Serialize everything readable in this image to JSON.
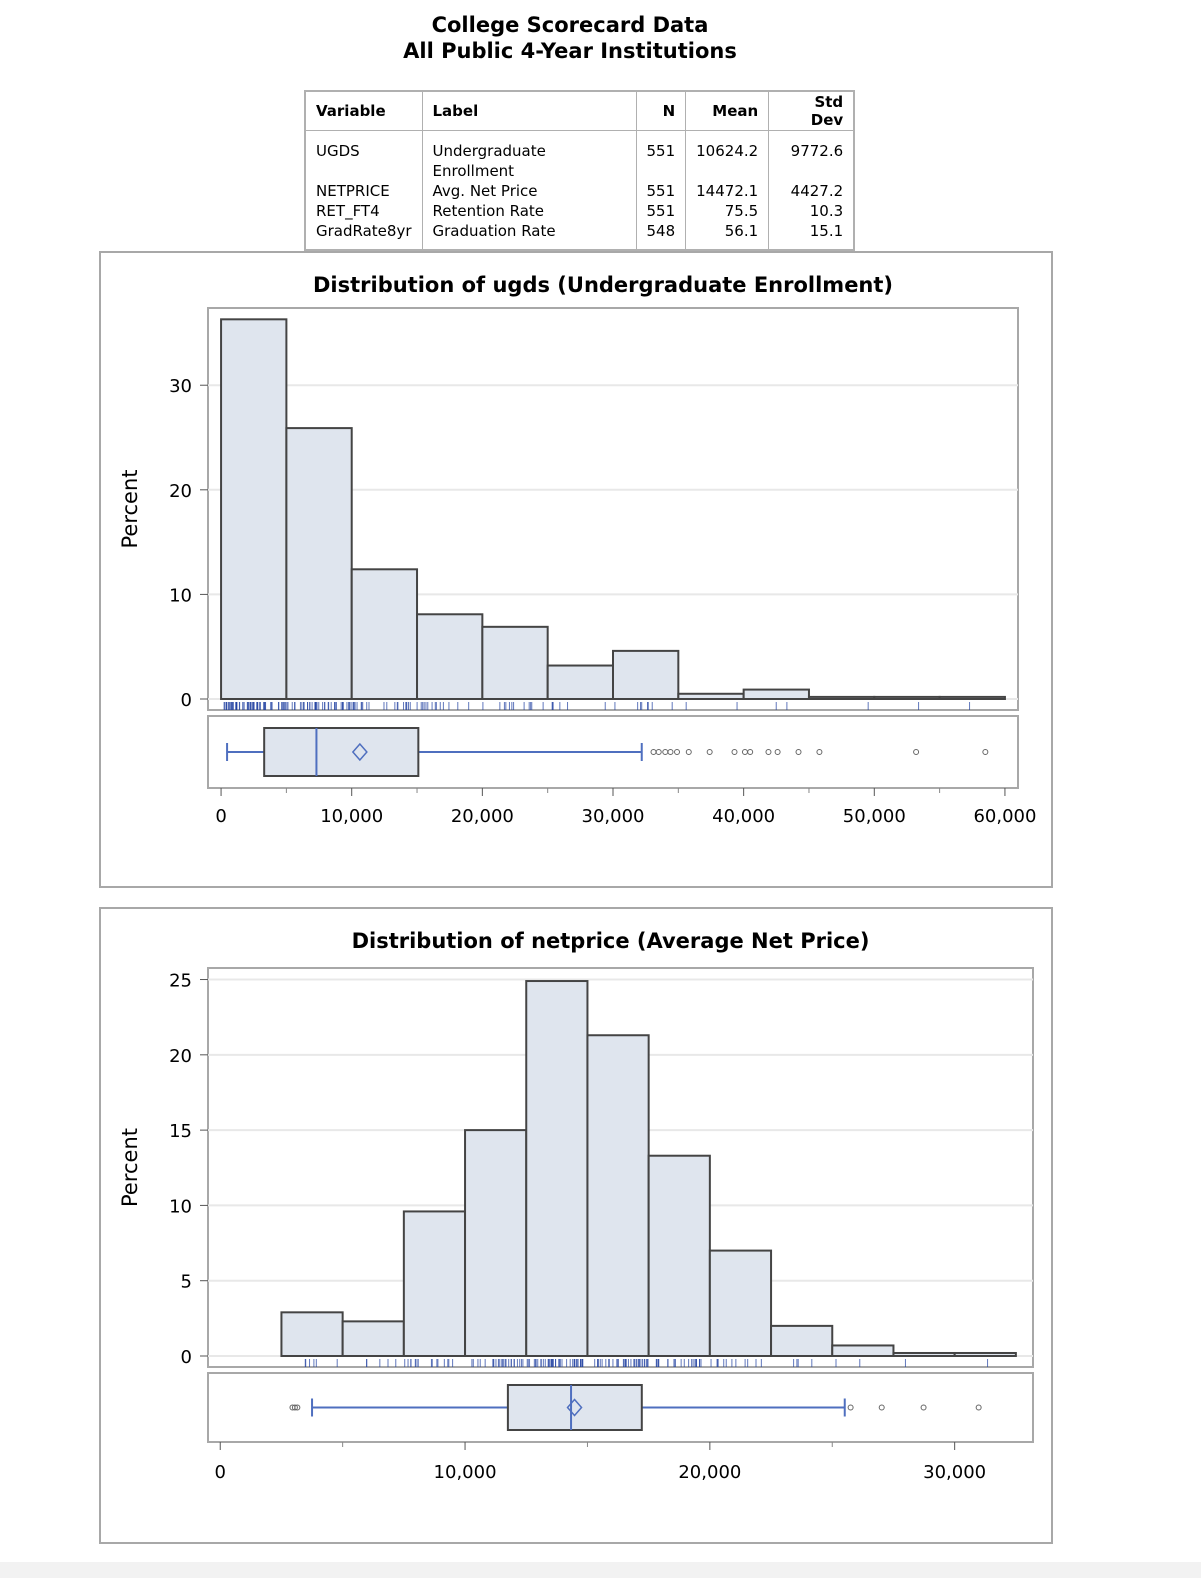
{
  "title": {
    "line1": "College Scorecard Data",
    "line2": "All Public 4-Year Institutions"
  },
  "summary_table": {
    "columns": [
      "Variable",
      "Label",
      "N",
      "Mean",
      "Std Dev"
    ],
    "rows": [
      [
        "UGDS",
        "Undergraduate Enrollment",
        "551",
        "10624.2",
        "9772.6"
      ],
      [
        "NETPRICE",
        "Avg. Net Price",
        "551",
        "14472.1",
        "4427.2"
      ],
      [
        "RET_FT4",
        "Retention Rate",
        "551",
        "75.5",
        "10.3"
      ],
      [
        "GradRate8yr",
        "Graduation Rate",
        "548",
        "56.1",
        "15.1"
      ]
    ]
  },
  "colors": {
    "bar_fill": "#dfe5ee",
    "bar_edge": "#444444",
    "box_line": "#4f6fbf",
    "rug": "#1f3fa0",
    "grid": "#e8e8e8"
  },
  "chart_data": [
    {
      "type": "bar",
      "title": "Distribution of ugds (Undergraduate Enrollment)",
      "ylabel": "Percent",
      "xlabel": "",
      "ylim": [
        0,
        37
      ],
      "xlim": [
        -1000,
        61000
      ],
      "yticks": [
        0,
        10,
        20,
        30
      ],
      "xticks": [
        0,
        10000,
        20000,
        30000,
        40000,
        50000,
        60000
      ],
      "xtick_labels": [
        "0",
        "10,000",
        "20,000",
        "30,000",
        "40,000",
        "50,000",
        "60,000"
      ],
      "ytick_labels": [
        "0",
        "10",
        "20",
        "30"
      ],
      "grid": true,
      "bin_width": 5000,
      "bin_starts": [
        0,
        5000,
        10000,
        15000,
        20000,
        25000,
        30000,
        35000,
        40000,
        45000,
        50000,
        55000
      ],
      "values": [
        36.3,
        25.9,
        12.4,
        8.1,
        6.9,
        3.2,
        4.6,
        0.5,
        0.9,
        0.2,
        0.2,
        0.2
      ],
      "boxplot": {
        "min": 460,
        "q1": 3300,
        "median": 7300,
        "mean": 10624.2,
        "q3": 15100,
        "whisker_max": 32200,
        "outliers": [
          33100,
          33500,
          34000,
          34400,
          34900,
          35800,
          37400,
          39300,
          40100,
          40500,
          41900,
          42600,
          44200,
          45800,
          53200,
          58500
        ]
      }
    },
    {
      "type": "bar",
      "title": "Distribution of netprice (Average Net Price)",
      "ylabel": "Percent",
      "xlabel": "",
      "ylim": [
        0,
        25.5
      ],
      "xlim": [
        -500,
        33200
      ],
      "yticks": [
        0,
        5,
        10,
        15,
        20,
        25
      ],
      "ytick_labels": [
        "0",
        "5",
        "10",
        "15",
        "20",
        "25"
      ],
      "xticks": [
        0,
        10000,
        20000,
        30000
      ],
      "xtick_labels": [
        "0",
        "10,000",
        "20,000",
        "30,000"
      ],
      "grid": true,
      "bin_width": 2500,
      "bin_starts": [
        2500,
        5000,
        7500,
        10000,
        12500,
        15000,
        17500,
        20000,
        22500,
        25000,
        27500,
        30000
      ],
      "values": [
        2.9,
        2.3,
        9.6,
        15.0,
        24.9,
        21.3,
        13.3,
        7.0,
        2.0,
        0.7,
        0.2,
        0.2
      ],
      "boxplot": {
        "whisker_min": 3750,
        "q1": 11750,
        "median": 14330,
        "mean": 14472.1,
        "q3": 17220,
        "max": 25510,
        "outliers": [
          2950,
          3050,
          3150,
          25750,
          27020,
          28730,
          30980
        ]
      }
    }
  ]
}
